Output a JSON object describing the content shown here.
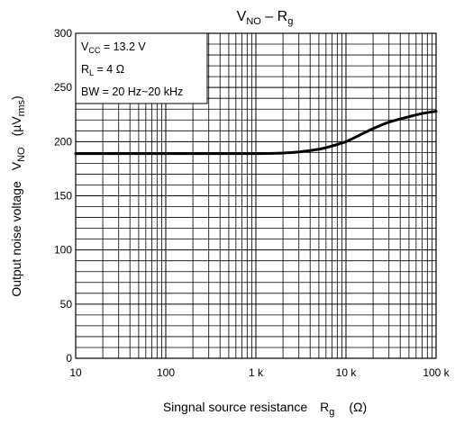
{
  "chart_data": {
    "type": "line",
    "title": "V",
    "title_sub1": "NO",
    "title_mid": " – R",
    "title_sub2": "g",
    "xlabel": "Singnal source resistance",
    "xlabel_sym": "R",
    "xlabel_sym_sub": "g",
    "xlabel_unit": "(Ω)",
    "ylabel": "Output noise voltage",
    "ylabel_sym": "V",
    "ylabel_sym_sub": "NO",
    "ylabel_unit_pre": "(µV",
    "ylabel_unit_sub": "rms",
    "ylabel_unit_post": ")",
    "x_scale": "log",
    "xlim": [
      10,
      100000
    ],
    "ylim": [
      0,
      300
    ],
    "x_ticks": [
      10,
      100,
      1000,
      10000,
      100000
    ],
    "x_tick_labels": [
      "10",
      "100",
      "1 k",
      "10 k",
      "100 k"
    ],
    "y_ticks": [
      0,
      50,
      100,
      150,
      200,
      250,
      300
    ],
    "y_tick_labels": [
      "0",
      "50",
      "100",
      "150",
      "200",
      "250",
      "300"
    ],
    "grid": true,
    "conditions": [
      {
        "pre": "V",
        "sub": "CC",
        "post": " = 13.2 V"
      },
      {
        "pre": "R",
        "sub": "L",
        "post": " = 4 Ω"
      },
      {
        "pre": "BW = 20 Hz~20 kHz",
        "sub": "",
        "post": ""
      }
    ],
    "series": [
      {
        "x": [
          10,
          100,
          1000,
          2000,
          3000,
          5000,
          7000,
          10000,
          15000,
          20000,
          30000,
          50000,
          70000,
          100000
        ],
        "values": [
          189,
          189,
          189,
          189.5,
          190.5,
          193,
          196,
          200,
          207,
          212,
          218,
          223,
          226,
          228
        ]
      }
    ]
  }
}
